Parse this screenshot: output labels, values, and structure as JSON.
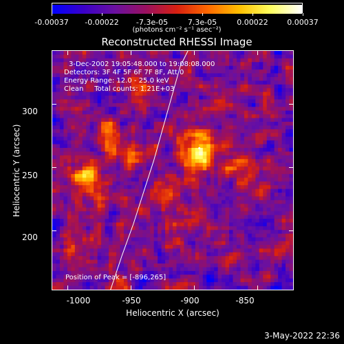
{
  "colorbar": {
    "ticks": [
      "-0.00037",
      "-0.00022",
      "-7.3e-05",
      "7.3e-05",
      "0.00022",
      "0.00037"
    ],
    "units": "(photons cm⁻² s⁻¹ asec⁻²)",
    "colors": [
      "#0000ff",
      "#3a00c8",
      "#6a10a0",
      "#9a1060",
      "#d82010",
      "#ff6a00",
      "#ffc000",
      "#ffff60",
      "#ffffff"
    ]
  },
  "title": "Reconstructed RHESSI Image",
  "info": {
    "time_range": "3-Dec-2002 19:05:48.000 to 19:08:08.000",
    "detectors": "Detectors: 3F 4F 5F 6F 7F 8F, Att 0",
    "energy": "Energy Range: 12.0 - 25.0 keV",
    "algorithm": "Clean     Total counts: 1.21E+03",
    "peak": "Position of Peak = [-896,265]"
  },
  "chart_data": {
    "type": "heatmap",
    "title": "Reconstructed RHESSI Image",
    "xlabel": "Heliocentric X (arcsec)",
    "ylabel": "Heliocentric Y (arcsec)",
    "xlim": [
      -1012,
      -822
    ],
    "ylim": [
      153,
      342
    ],
    "x_ticks": [
      -1000,
      -950,
      -900,
      -850
    ],
    "y_ticks": [
      200,
      250,
      300
    ],
    "value_range": [
      -0.00037,
      0.00037
    ],
    "peak_position": [
      -896,
      265
    ],
    "limb_curve": {
      "x": [
        -966,
        -957,
        -948,
        -940,
        -932,
        -925,
        -918,
        -911,
        -905
      ],
      "y": [
        153,
        180,
        205,
        230,
        255,
        280,
        305,
        330,
        342
      ]
    }
  },
  "footer": {
    "timestamp": "3-May-2022 22:36"
  }
}
